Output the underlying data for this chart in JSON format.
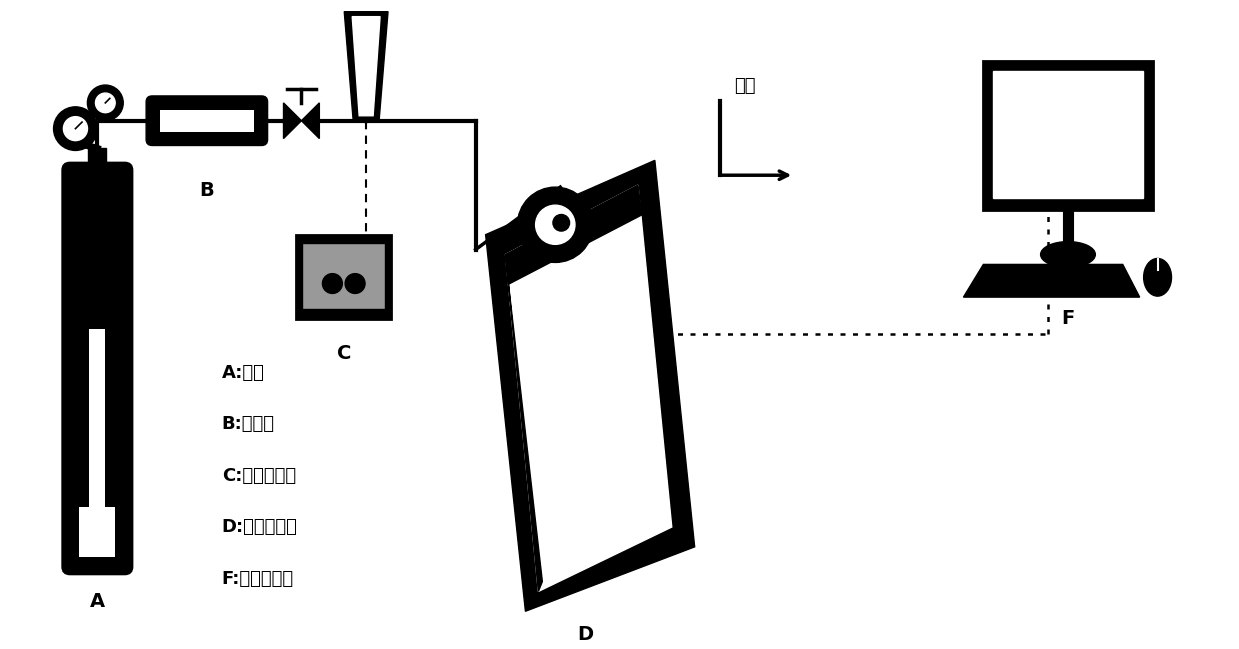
{
  "bg_color": "#ffffff",
  "line_color": "#000000",
  "legend_lines": [
    "A:氮气",
    "B:干燥管",
    "C:流量显示仪",
    "D:热重分析仪",
    "F:电脑显示器"
  ],
  "paikon_text": "排空"
}
